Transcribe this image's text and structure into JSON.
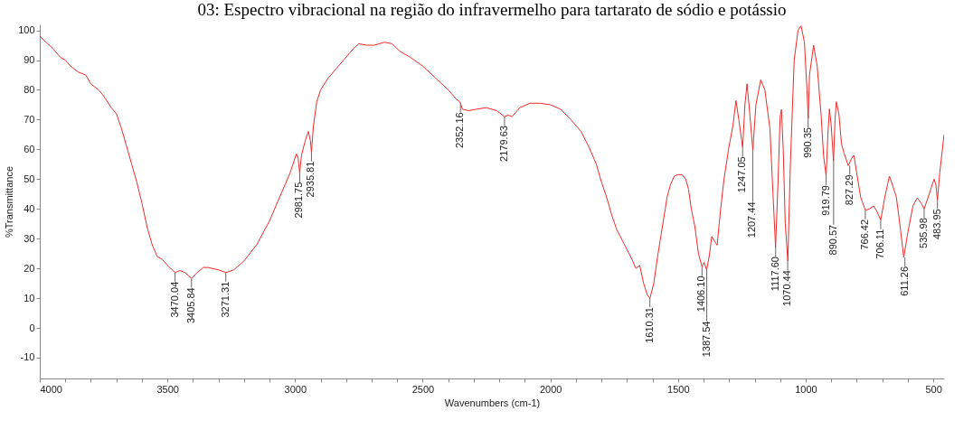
{
  "chart_data": {
    "type": "line",
    "title": "03: Espectro vibracional na região do infravermelho para tartarato de sódio e potássio",
    "xlabel": "Wavenumbers (cm-1)",
    "ylabel": "%Transmittance",
    "color": "#ee2a2a",
    "x": [
      4000,
      3950,
      3920,
      3900,
      3880,
      3850,
      3820,
      3800,
      3770,
      3750,
      3720,
      3700,
      3680,
      3660,
      3640,
      3620,
      3600,
      3580,
      3560,
      3540,
      3520,
      3500,
      3470,
      3450,
      3430,
      3405,
      3385,
      3360,
      3340,
      3300,
      3271,
      3240,
      3200,
      3150,
      3100,
      3060,
      3020,
      2995,
      2988,
      2982,
      2975,
      2960,
      2948,
      2940,
      2936,
      2928,
      2915,
      2900,
      2870,
      2840,
      2800,
      2770,
      2750,
      2720,
      2690,
      2650,
      2620,
      2590,
      2550,
      2500,
      2450,
      2400,
      2370,
      2355,
      2352,
      2345,
      2320,
      2290,
      2250,
      2210,
      2180,
      2165,
      2150,
      2120,
      2080,
      2040,
      2000,
      1960,
      1920,
      1880,
      1850,
      1820,
      1800,
      1780,
      1760,
      1740,
      1710,
      1680,
      1665,
      1650,
      1635,
      1620,
      1610,
      1595,
      1580,
      1567,
      1550,
      1543,
      1530,
      1515,
      1500,
      1484,
      1470,
      1459,
      1448,
      1434,
      1420,
      1406,
      1398,
      1388,
      1378,
      1368,
      1356,
      1347,
      1333,
      1320,
      1301,
      1285,
      1273,
      1262,
      1247,
      1238,
      1230,
      1222,
      1207,
      1195,
      1176,
      1160,
      1140,
      1128,
      1118,
      1108,
      1100,
      1095,
      1088,
      1080,
      1070,
      1060,
      1045,
      1030,
      1018,
      1005,
      995,
      990,
      985,
      969,
      955,
      940,
      930,
      920,
      913,
      907,
      900,
      891,
      885,
      880,
      870,
      860,
      850,
      833,
      820,
      811,
      800,
      785,
      766,
      750,
      734,
      720,
      706,
      690,
      672,
      660,
      645,
      630,
      616,
      600,
      580,
      563,
      548,
      536,
      520,
      497,
      490,
      484,
      475,
      458
    ],
    "values": [
      98,
      94,
      91,
      90,
      88,
      86,
      85,
      82,
      80,
      78,
      74,
      72,
      67,
      61,
      55,
      49,
      42,
      34,
      28,
      24,
      23,
      21,
      18.6,
      19.3,
      18.5,
      16.6,
      18.5,
      20.3,
      20.3,
      19.5,
      18.6,
      19.5,
      22.5,
      28,
      36,
      44,
      52,
      58.5,
      57,
      52,
      58,
      63,
      66,
      63,
      59,
      68,
      76,
      80,
      84,
      87,
      91,
      94,
      95.5,
      95,
      95,
      96,
      95.5,
      93,
      91,
      88,
      84,
      80,
      77,
      76,
      75.5,
      73.5,
      73,
      73.5,
      74,
      73,
      71,
      71.5,
      71,
      74,
      75.5,
      75.5,
      75,
      73.5,
      70,
      66,
      61,
      55,
      49,
      44,
      38,
      33,
      28,
      23,
      20,
      21,
      15,
      11,
      10,
      15,
      24,
      31,
      40,
      44,
      48,
      51,
      51.5,
      51.5,
      50,
      46.6,
      40,
      34,
      25,
      20.5,
      22,
      19.5,
      24,
      30.7,
      29,
      27.8,
      40,
      50,
      60.6,
      68,
      76.4,
      70,
      60.6,
      75,
      82,
      75,
      59.7,
      75,
      83.4,
      80,
      67,
      45,
      27,
      50,
      71,
      73.4,
      60,
      35,
      22.4,
      55,
      90,
      100,
      101.5,
      96,
      80,
      70.4,
      85,
      95,
      88,
      72,
      58,
      51,
      65,
      73.6,
      68,
      56,
      70,
      76,
      72,
      62,
      58.8,
      54.5,
      57,
      58,
      52,
      44,
      39.5,
      40,
      41,
      39,
      36.2,
      44,
      51,
      48,
      44,
      34,
      23.7,
      32,
      41,
      43.7,
      42,
      40,
      44,
      50,
      48,
      43,
      52,
      65
    ],
    "xlim": [
      4000,
      458
    ],
    "ylim": [
      -17,
      102
    ],
    "xticks": [
      4000,
      {
        "value": 3900,
        "label": null
      },
      {
        "value": 3800,
        "label": null
      },
      {
        "value": 3700,
        "label": null
      },
      {
        "value": 3600,
        "label": null
      },
      3500,
      {
        "value": 3400,
        "label": null
      },
      {
        "value": 3300,
        "label": null
      },
      {
        "value": 3200,
        "label": null
      },
      {
        "value": 3100,
        "label": null
      },
      3000,
      {
        "value": 2900,
        "label": null
      },
      {
        "value": 2800,
        "label": null
      },
      {
        "value": 2700,
        "label": null
      },
      {
        "value": 2600,
        "label": null
      },
      2500,
      {
        "value": 2400,
        "label": null
      },
      {
        "value": 2300,
        "label": null
      },
      {
        "value": 2200,
        "label": null
      },
      {
        "value": 2100,
        "label": null
      },
      2000,
      {
        "value": 1900,
        "label": null
      },
      {
        "value": 1800,
        "label": null
      },
      {
        "value": 1700,
        "label": null
      },
      {
        "value": 1600,
        "label": null
      },
      1500,
      {
        "value": 1400,
        "label": null
      },
      {
        "value": 1300,
        "label": null
      },
      {
        "value": 1200,
        "label": null
      },
      {
        "value": 1100,
        "label": null
      },
      1000,
      {
        "value": 900,
        "label": null
      },
      {
        "value": 800,
        "label": null
      },
      {
        "value": 700,
        "label": null
      },
      {
        "value": 600,
        "label": null
      },
      500
    ],
    "yticks": [
      -10,
      0,
      10,
      20,
      30,
      40,
      50,
      60,
      70,
      80,
      90,
      100
    ],
    "grid": false,
    "annotations": [
      {
        "text": "3470.04",
        "x": 3470.04,
        "y": 18.6
      },
      {
        "text": "3405.84",
        "x": 3405.84,
        "y": 16.6
      },
      {
        "text": "3271.31",
        "x": 3271.31,
        "y": 18.6
      },
      {
        "text": "2981.75",
        "x": 2981.75,
        "y": 52
      },
      {
        "text": "2935.81",
        "x": 2935.81,
        "y": 59
      },
      {
        "text": "2352.16",
        "x": 2352.16,
        "y": 75.5
      },
      {
        "text": "2179.63",
        "x": 2179.63,
        "y": 71
      },
      {
        "text": "1610.31",
        "x": 1610.31,
        "y": 10
      },
      {
        "text": "1406.10",
        "x": 1406.1,
        "y": 20.5
      },
      {
        "text": "1387.54",
        "x": 1387.54,
        "y": 19.5
      },
      {
        "text": "1247.05",
        "x": 1247.05,
        "y": 60.6
      },
      {
        "text": "1207.44",
        "x": 1207.44,
        "y": 59.7
      },
      {
        "text": "1117.60",
        "x": 1117.6,
        "y": 27
      },
      {
        "text": "1070.44",
        "x": 1070.44,
        "y": 22.4
      },
      {
        "text": "990.35",
        "x": 990.35,
        "y": 70.4
      },
      {
        "text": "919.79",
        "x": 919.79,
        "y": 51
      },
      {
        "text": "890.57",
        "x": 890.57,
        "y": 56
      },
      {
        "text": "827.29",
        "x": 827.29,
        "y": 54.5
      },
      {
        "text": "766.42",
        "x": 766.42,
        "y": 39.5
      },
      {
        "text": "706.11",
        "x": 706.11,
        "y": 36.2
      },
      {
        "text": "611.26",
        "x": 611.26,
        "y": 23.7
      },
      {
        "text": "535.98",
        "x": 535.98,
        "y": 40
      },
      {
        "text": "483.95",
        "x": 483.95,
        "y": 43
      }
    ]
  }
}
